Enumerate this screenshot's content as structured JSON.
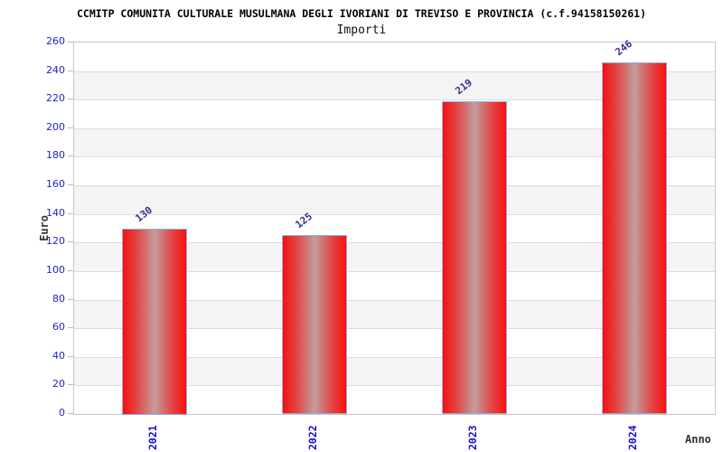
{
  "page": {
    "background": "#FFFFFF"
  },
  "chart_data": {
    "type": "bar",
    "title": "CCMITP COMUNITA CULTURALE MUSULMANA DEGLI IVORIANI DI TREVISO E PROVINCIA (c.f.94158150261)",
    "subtitle": "Importi",
    "xlabel": "Anno",
    "ylabel": "Euro",
    "categories": [
      "2021",
      "2022",
      "2023",
      "2024"
    ],
    "values": [
      130,
      125,
      219,
      246
    ],
    "ylim": [
      0,
      260
    ],
    "ytick_step": 20,
    "yticks": [
      0,
      20,
      40,
      60,
      80,
      100,
      120,
      140,
      160,
      180,
      200,
      220,
      240,
      260
    ],
    "grid": "horizontal",
    "band_shading": "alternating-20-unit-bands",
    "legend": false
  },
  "colors": {
    "ytick_label": "#2222CC",
    "category_label": "#1414CC",
    "value_label": "#31319B",
    "bar_red": "#F90F0F",
    "bar_mid_red": "#E14545",
    "bar_center": "#C49C9C",
    "bar_border": "#8FB2DE",
    "band_gray": "#F4F4F4",
    "band_white": "#FFFFFF",
    "gridline": "#DCDCDC",
    "tick_mark": "#BBBBBB",
    "plot_border": "#C8C8C8",
    "title": "#000000",
    "axis_title": "#333333"
  }
}
